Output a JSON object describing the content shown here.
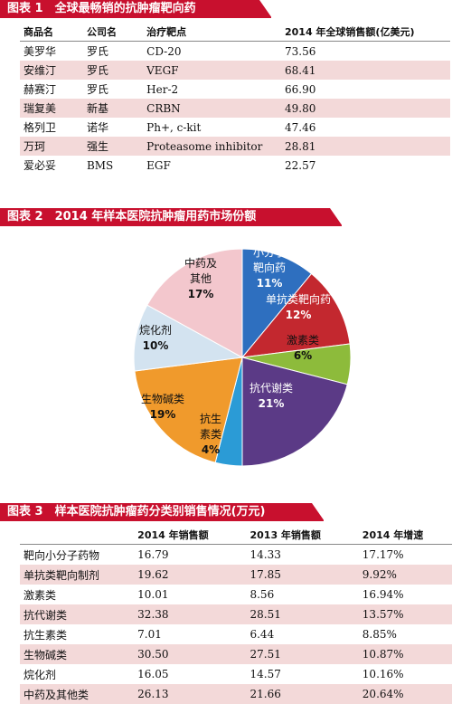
{
  "table1": {
    "title": "图表 1　全球最畅销的抗肿瘤靶向药",
    "headers": [
      "商品名",
      "公司名",
      "治疗靶点",
      "2014 年全球销售额(亿美元)"
    ],
    "rows": [
      [
        "美罗华",
        "罗氏",
        "CD-20",
        "73.56"
      ],
      [
        "安维汀",
        "罗氏",
        "VEGF",
        "68.41"
      ],
      [
        "赫赛汀",
        "罗氏",
        "Her-2",
        "66.90"
      ],
      [
        "瑞复美",
        "新基",
        "CRBN",
        "49.80"
      ],
      [
        "格列卫",
        "诺华",
        "Ph+, c-kit",
        "47.46"
      ],
      [
        "万珂",
        "强生",
        "Proteasome inhibitor",
        "28.81"
      ],
      [
        "爱必妥",
        "BMS",
        "EGF",
        "22.57"
      ]
    ]
  },
  "chart": {
    "title": "图表 2　2014 年样本医院抗肿瘤用药市场份额",
    "chart_data": {
      "type": "pie",
      "title": "图表 2　2014 年样本医院抗肿瘤用药市场份额",
      "slices": [
        {
          "label": "小分子靶向药",
          "value": 11,
          "pct": "11%",
          "color": "#2e6fbf"
        },
        {
          "label": "单抗类靶向药",
          "value": 12,
          "pct": "12%",
          "color": "#c3282f"
        },
        {
          "label": "激素类",
          "value": 6,
          "pct": "6%",
          "color": "#8dbb3b"
        },
        {
          "label": "抗代谢类",
          "value": 21,
          "pct": "21%",
          "color": "#5b3a86"
        },
        {
          "label": "抗生素类",
          "value": 4,
          "pct": "4%",
          "color": "#2b9bd6"
        },
        {
          "label": "生物碱类",
          "value": 19,
          "pct": "19%",
          "color": "#f09a2c"
        },
        {
          "label": "烷化剂",
          "value": 10,
          "pct": "10%",
          "color": "#d3e3f0"
        },
        {
          "label": "中药及其他",
          "value": 17,
          "pct": "17%",
          "color": "#f3c7cd"
        }
      ]
    }
  },
  "table3": {
    "title": "图表 3　样本医院抗肿瘤药分类别销售情况(万元)",
    "headers": [
      "",
      "2014 年销售额",
      "2013 年销售额",
      "2014 年增速"
    ],
    "rows": [
      [
        "靶向小分子药物",
        "16.79",
        "14.33",
        "17.17%"
      ],
      [
        "单抗类靶向制剂",
        "19.62",
        "17.85",
        "9.92%"
      ],
      [
        "激素类",
        "10.01",
        "8.56",
        "16.94%"
      ],
      [
        "抗代谢类",
        "32.38",
        "28.51",
        "13.57%"
      ],
      [
        "抗生素类",
        "7.01",
        "6.44",
        "8.85%"
      ],
      [
        "生物碱类",
        "30.50",
        "27.51",
        "10.87%"
      ],
      [
        "烷化剂",
        "16.05",
        "14.57",
        "10.16%"
      ],
      [
        "中药及其他类",
        "26.13",
        "21.66",
        "20.64%"
      ]
    ]
  }
}
